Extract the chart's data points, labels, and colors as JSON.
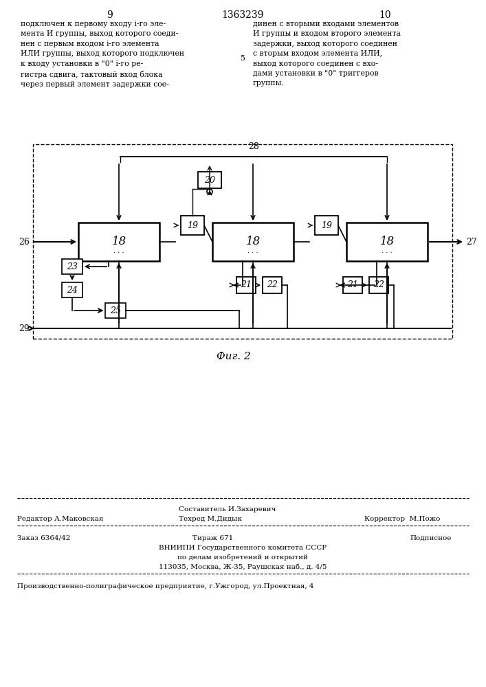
{
  "page_width": 7.07,
  "page_height": 10.0,
  "bg_color": "#ffffff",
  "header": {
    "page_left": "9",
    "title": "1363239",
    "page_right": "10"
  },
  "text_left": "подключен к первому входу i-го эле-\nмента И группы, выход которого соеди-\nнен с первым входом i-го элемента\nИЛИ группы, выход которого подключен\nк входу установки в \"0\" i-го ре-\nгистра сдвига, тактовый вход блока\nчерез первый элемент задержки сое-",
  "text_right": "динен с вторыми входами элементов\nИ группы и входом второго элемента\nзадержки, выход которого соединен\nс вторым входом элемента ИЛИ,\nвыход которого соединен с вхо-\nдами установки в \"0\" триггеров\nгруппы.",
  "line_number": "5",
  "fig_caption": "Фиг. 2",
  "footer": {
    "line1_center_top": "Составитель И.Захаревич",
    "line1_left": "Редактор А.Маковская",
    "line1_center_bot": "Техред М.Дидык",
    "line1_right": "Корректор  М.Пожо",
    "line2_left": "Заказ 6364/42",
    "line2_center": "Тираж 671",
    "line2_right": "Подписное",
    "line3": "ВНИИПИ Государственного комитета СССР",
    "line4": "по делам изобретений и открытий",
    "line5": "113035, Москва, Ж-35, Раушская наб., д. 4/5",
    "line6": "Производственно-полиграфическое предприятие, г.Ужгород, ул.Проектная, 4"
  }
}
